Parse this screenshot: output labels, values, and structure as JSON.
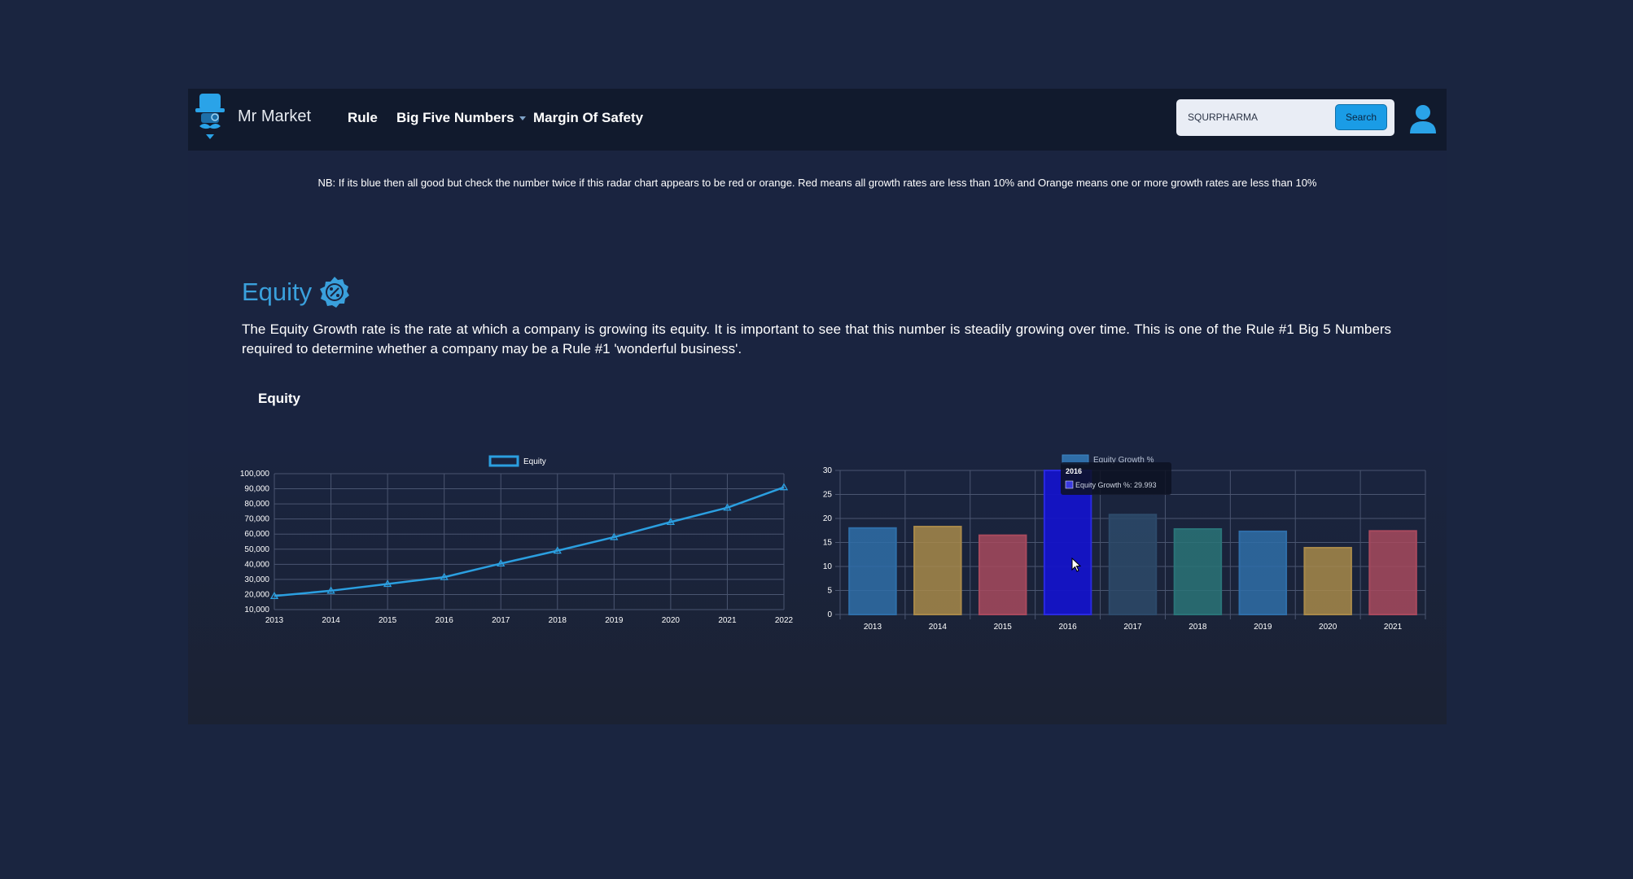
{
  "navbar": {
    "brand": "Mr Market",
    "links": [
      "Rule",
      "Big Five Numbers",
      "Margin Of Safety"
    ],
    "search_value": "SQURPHARMA",
    "search_button": "Search"
  },
  "notice": "NB: If its blue then all good but check the number twice if this radar chart appears to be red or orange. Red means all growth rates are less than 10% and Orange means one or more growth rates are less than 10%",
  "section": {
    "title": "Equity",
    "description": "The Equity Growth rate is the rate at which a company is growing its equity. It is important to see that this number is steadily growing over time. This is one of the Rule #1 Big 5 Numbers required to determine whether a company may be a Rule #1 'wonderful business'.",
    "subheading": "Equity"
  },
  "chart_data": [
    {
      "type": "line",
      "legend": [
        "Equity"
      ],
      "x": [
        "2013",
        "2014",
        "2015",
        "2016",
        "2017",
        "2018",
        "2019",
        "2020",
        "2021",
        "2022"
      ],
      "series": [
        {
          "name": "Equity",
          "values": [
            19000,
            22500,
            27000,
            31500,
            40500,
            49000,
            58000,
            68000,
            77500,
            91000
          ],
          "color": "#2b9fe0"
        }
      ],
      "yticks": [
        "10,000",
        "20,000",
        "30,000",
        "40,000",
        "50,000",
        "60,000",
        "70,000",
        "80,000",
        "90,000",
        "100,000"
      ],
      "ylim": [
        10000,
        100000
      ],
      "grid": true
    },
    {
      "type": "bar",
      "legend": [
        "Equity Growth %"
      ],
      "categories": [
        "2013",
        "2014",
        "2015",
        "2016",
        "2017",
        "2018",
        "2019",
        "2020",
        "2021"
      ],
      "values": [
        18,
        18.3,
        16.5,
        29.993,
        20.8,
        17.8,
        17.3,
        13.9,
        17.4
      ],
      "colors": [
        "#2f6ea8",
        "#a8894a",
        "#a84a5e",
        "#1414c8",
        "#2d4a6a",
        "#2a7478",
        "#2f6ea8",
        "#a8894a",
        "#a84a5e"
      ],
      "yticks": [
        "0",
        "5",
        "10",
        "15",
        "20",
        "25",
        "30"
      ],
      "ylim": [
        0,
        30
      ],
      "grid": true,
      "tooltip": {
        "title": "2016",
        "label": "Equity Growth %: 29.993"
      }
    }
  ]
}
